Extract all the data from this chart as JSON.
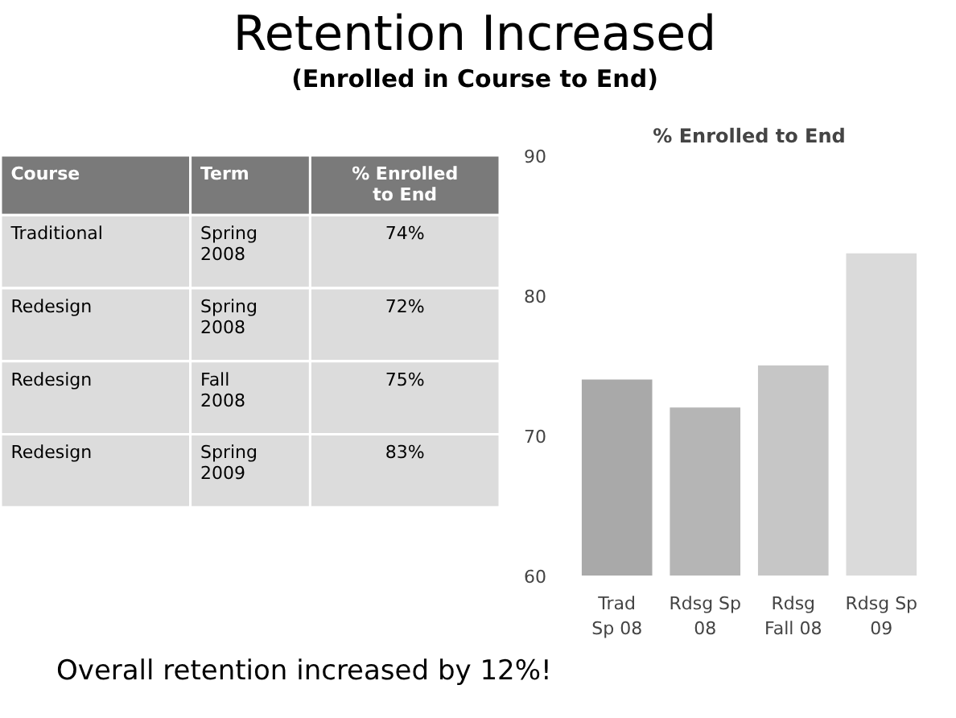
{
  "chart_data": [
    {
      "type": "other",
      "title": "Retention Increased",
      "subtitle": "(Enrolled in Course to End)",
      "annotations": [
        "Course",
        "Term",
        "% Enrolled\nto End",
        "Traditional",
        "Spring\n2008",
        "74%",
        "Redesign",
        "Spring\n2008",
        "72%",
        "Redesign",
        "Fall\n2008",
        "75%",
        "Redesign",
        "Spring\n2009",
        "83%",
        "Overall retention increased by 12%!"
      ]
    },
    {
      "type": "bar",
      "title": "% Enrolled to End",
      "categories": [
        "Trad\nSp 08",
        "Rdsg Sp\n08",
        "Rdsg\nFall 08",
        "Rdsg Sp\n09"
      ],
      "values": [
        74,
        72,
        75,
        83
      ],
      "colors": [
        "#a9a9a9",
        "#b5b5b5",
        "#c6c6c6",
        "#dadada"
      ],
      "ylim": [
        60,
        90
      ],
      "yticks": [
        60,
        70,
        80,
        90
      ],
      "grid": false
    }
  ]
}
